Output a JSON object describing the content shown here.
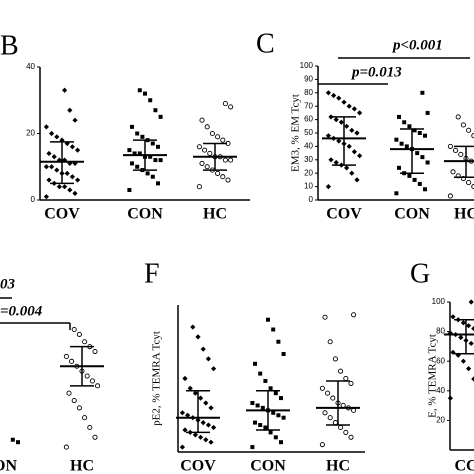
{
  "chart_data": [
    {
      "type": "dot",
      "label": "B",
      "categories": [
        "COV",
        "CON",
        "HC"
      ],
      "markers": [
        "diamond",
        "square",
        "circle"
      ],
      "values": [
        [
          1,
          2,
          3,
          4,
          4,
          5,
          6,
          6,
          7,
          8,
          8,
          9,
          10,
          10,
          11,
          11,
          12,
          12,
          13,
          14,
          15,
          16,
          17,
          18,
          19,
          20,
          22,
          24,
          27,
          33
        ],
        [
          3,
          5,
          7,
          8,
          9,
          10,
          11,
          12,
          12,
          13,
          13,
          14,
          14,
          15,
          16,
          17,
          18,
          19,
          20,
          22,
          25,
          27,
          30,
          32,
          33
        ],
        [
          4,
          6,
          7,
          8,
          9,
          10,
          11,
          12,
          12,
          13,
          13,
          14,
          15,
          16,
          17,
          18,
          19,
          20,
          22,
          24,
          28,
          29
        ]
      ],
      "median": [
        11.5,
        13.5,
        13
      ],
      "error_low": [
        5,
        9,
        9
      ],
      "error_high": [
        17.5,
        18,
        17
      ],
      "ylim": [
        0,
        40
      ],
      "yticks": [
        0,
        20,
        40
      ]
    },
    {
      "type": "dot",
      "label": "C",
      "ylabel": "EM3, % EM Tcyt",
      "categories": [
        "COV",
        "CON",
        "HC"
      ],
      "markers": [
        "diamond",
        "square",
        "circle"
      ],
      "values": [
        [
          10,
          15,
          20,
          24,
          26,
          28,
          30,
          33,
          36,
          40,
          42,
          44,
          46,
          48,
          50,
          52,
          55,
          58,
          60,
          62,
          65,
          68,
          70,
          73,
          76,
          78,
          80
        ],
        [
          5,
          8,
          12,
          15,
          18,
          20,
          24,
          28,
          32,
          35,
          38,
          40,
          42,
          45,
          48,
          50,
          52,
          55,
          58,
          62,
          65,
          80
        ],
        [
          3,
          6,
          10,
          13,
          16,
          18,
          21,
          24,
          27,
          29,
          31,
          34,
          37,
          40,
          44,
          48,
          52,
          56,
          62
        ]
      ],
      "median": [
        46,
        38,
        29
      ],
      "error_low": [
        26,
        20,
        17
      ],
      "error_high": [
        62,
        53,
        40
      ],
      "ylim": [
        0,
        100
      ],
      "yticks": [
        0,
        10,
        20,
        30,
        40,
        50,
        60,
        70,
        80,
        90,
        100
      ],
      "annotations": [
        "p=0.013",
        "p<0.001"
      ]
    },
    {
      "type": "dot",
      "categories": [
        "ON",
        "HC"
      ],
      "markers": [
        "square",
        "circle"
      ],
      "values": [
        [
          3,
          4,
          5
        ],
        [
          2,
          6,
          10,
          14,
          18,
          21,
          24,
          27,
          29,
          31,
          33,
          35,
          37,
          39,
          41,
          43,
          45,
          48,
          50
        ]
      ],
      "median": [
        null,
        35
      ],
      "error_low": [
        null,
        27
      ],
      "error_high": [
        null,
        43
      ],
      "ylim": [
        0,
        60
      ],
      "annotations": [
        "03",
        "=0.004"
      ]
    },
    {
      "type": "dot",
      "label": "F",
      "ylabel": "pE2, % TEMRA Tcyt",
      "categories": [
        "COV",
        "CON",
        "HC"
      ],
      "markers": [
        "diamond",
        "square",
        "circle"
      ],
      "values": [
        [
          2,
          4,
          5,
          6,
          7,
          8,
          9,
          10,
          11,
          12,
          13,
          14,
          15,
          16,
          18,
          20,
          22,
          24,
          26,
          30,
          34,
          38,
          42,
          47,
          51
        ],
        [
          2,
          4,
          6,
          8,
          10,
          11,
          12,
          14,
          15,
          16,
          17,
          18,
          19,
          20,
          22,
          24,
          26,
          29,
          32,
          36,
          40,
          45,
          50,
          54
        ],
        [
          3,
          6,
          8,
          10,
          12,
          14,
          16,
          17,
          18,
          19,
          20,
          22,
          24,
          26,
          28,
          30,
          33,
          38,
          45,
          55,
          56
        ]
      ],
      "median": [
        14,
        17,
        18
      ],
      "error_low": [
        8,
        9,
        11
      ],
      "error_high": [
        25,
        25,
        29
      ],
      "ylim": [
        0,
        60
      ]
    },
    {
      "type": "dot",
      "label": "G",
      "ylabel": "E, % TEMRA Tcyt",
      "categories": [
        "CC"
      ],
      "markers": [
        "diamond"
      ],
      "values": [
        [
          35,
          42,
          48,
          55,
          60,
          64,
          66,
          68,
          70,
          72,
          74,
          76,
          78,
          79,
          80,
          82,
          84,
          86,
          88,
          90,
          93,
          96,
          100
        ]
      ],
      "median": [
        78
      ],
      "error_low": [
        65
      ],
      "error_high": [
        88
      ],
      "ylim": [
        0,
        100
      ],
      "yticks": [
        20,
        40,
        60,
        80,
        100
      ]
    }
  ]
}
